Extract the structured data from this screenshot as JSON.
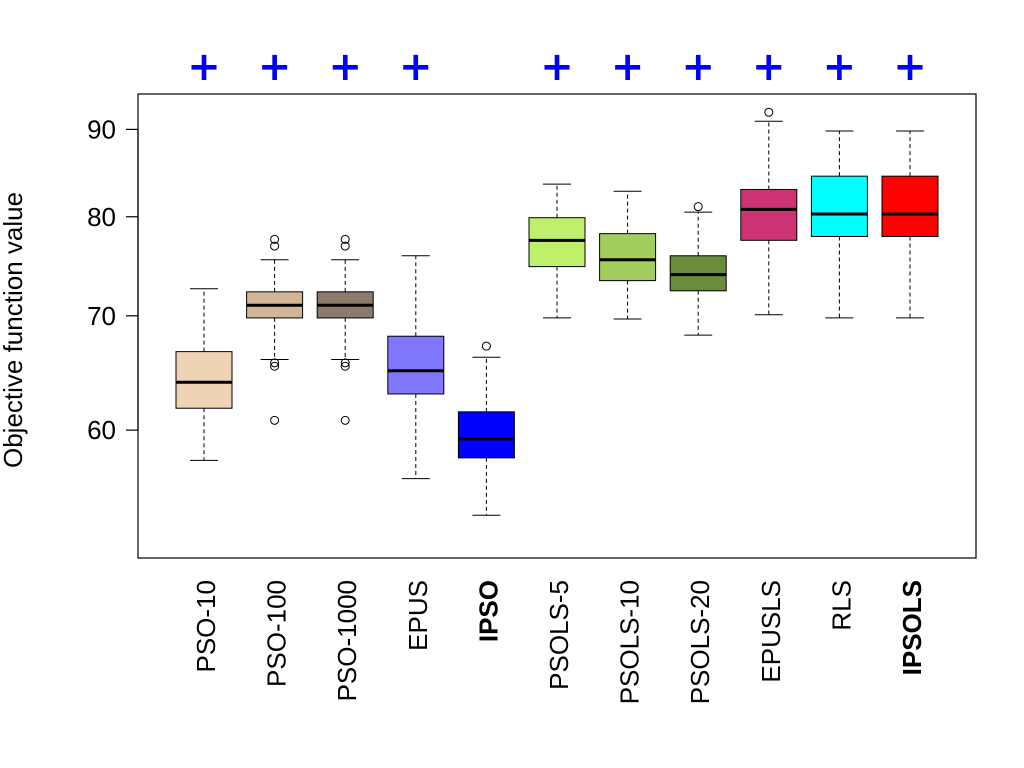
{
  "chart_data": {
    "type": "boxplot",
    "ylabel": "Objective function value",
    "ylim": [
      50.5,
      94.4
    ],
    "yticks": [
      {
        "value": 60,
        "label": "60"
      },
      {
        "value": 70,
        "label": "70"
      },
      {
        "value": 80,
        "label": "80"
      },
      {
        "value": 90,
        "label": "90"
      }
    ],
    "marker_color": "#0000ff",
    "boxes": [
      {
        "name": "PSO-10",
        "bold": false,
        "color": "#efd3b5",
        "min": 57.6,
        "q1": 61.8,
        "median": 64.0,
        "q3": 66.7,
        "max": 72.6,
        "outliers": [],
        "plus": "+"
      },
      {
        "name": "PSO-100",
        "bold": false,
        "color": "#d2b597",
        "min": 66.0,
        "q1": 69.8,
        "median": 71.0,
        "q3": 72.3,
        "max": 75.5,
        "outliers": [
          77.6,
          76.9,
          65.7,
          65.4,
          60.8
        ],
        "plus": "+"
      },
      {
        "name": "PSO-1000",
        "bold": false,
        "color": "#8c7b6b",
        "min": 66.0,
        "q1": 69.8,
        "median": 71.0,
        "q3": 72.3,
        "max": 75.5,
        "outliers": [
          77.6,
          76.9,
          65.7,
          65.4,
          60.8
        ],
        "plus": "+"
      },
      {
        "name": "EPUS",
        "bold": false,
        "color": "#8077fc",
        "min": 56.2,
        "q1": 63.0,
        "median": 65.0,
        "q3": 68.1,
        "max": 75.9,
        "outliers": [],
        "plus": "+"
      },
      {
        "name": "IPSO",
        "bold": true,
        "color": "#0000ff",
        "min": 53.5,
        "q1": 57.8,
        "median": 59.3,
        "q3": 61.5,
        "max": 66.2,
        "outliers": [
          67.2
        ],
        "plus": ""
      },
      {
        "name": "PSOLS-5",
        "bold": false,
        "color": "#bff06b",
        "min": 69.8,
        "q1": 74.8,
        "median": 77.5,
        "q3": 79.9,
        "max": 83.6,
        "outliers": [],
        "plus": "+"
      },
      {
        "name": "PSOLS-10",
        "bold": false,
        "color": "#a2ce5d",
        "min": 69.7,
        "q1": 73.4,
        "median": 75.5,
        "q3": 78.2,
        "max": 82.8,
        "outliers": [],
        "plus": "+"
      },
      {
        "name": "PSOLS-20",
        "bold": false,
        "color": "#6b8c3b",
        "min": 68.2,
        "q1": 72.4,
        "median": 74.0,
        "q3": 75.9,
        "max": 80.5,
        "outliers": [
          81.1
        ],
        "plus": "+"
      },
      {
        "name": "EPUSLS",
        "bold": false,
        "color": "#cc3372",
        "min": 70.1,
        "q1": 77.5,
        "median": 80.8,
        "q3": 83.0,
        "max": 91.0,
        "outliers": [
          92.1
        ],
        "plus": "+"
      },
      {
        "name": "RLS",
        "bold": false,
        "color": "#00ffff",
        "min": 69.8,
        "q1": 77.9,
        "median": 80.3,
        "q3": 84.5,
        "max": 89.8,
        "outliers": [],
        "plus": "+"
      },
      {
        "name": "IPSOLS",
        "bold": true,
        "color": "#ff0000",
        "min": 69.8,
        "q1": 77.9,
        "median": 80.3,
        "q3": 84.5,
        "max": 89.8,
        "outliers": [],
        "plus": "+"
      }
    ]
  }
}
